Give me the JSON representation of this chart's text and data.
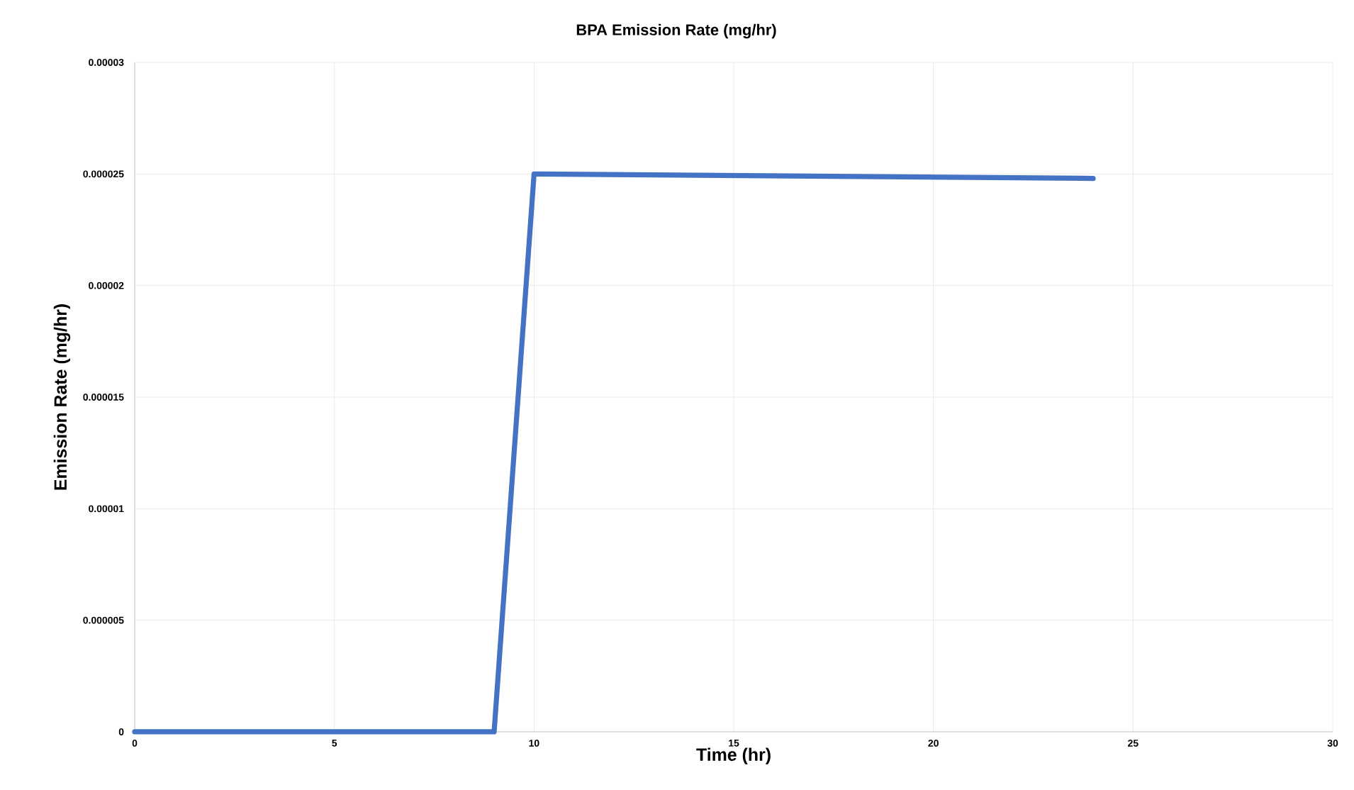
{
  "chart_data": {
    "type": "line",
    "title": "BPA Emission Rate (mg/hr)",
    "xlabel": "Time (hr)",
    "ylabel": "Emission Rate (mg/hr)",
    "x": [
      0,
      9,
      10,
      24
    ],
    "series": [
      {
        "color": "#4472c4",
        "values": [
          0,
          0,
          2.5e-05,
          2.48e-05
        ]
      }
    ],
    "xlim": [
      0,
      30
    ],
    "xticks": [
      0,
      5,
      10,
      15,
      20,
      25,
      30
    ],
    "ylim": [
      0,
      3e-05
    ],
    "yticks": [
      {
        "value": 0,
        "label": "0"
      },
      {
        "value": 5e-06,
        "label": "0.000005"
      },
      {
        "value": 1e-05,
        "label": "0.00001"
      },
      {
        "value": 1.5e-05,
        "label": "0.000015"
      },
      {
        "value": 2e-05,
        "label": "0.00002"
      },
      {
        "value": 2.5e-05,
        "label": "0.000025"
      },
      {
        "value": 3e-05,
        "label": "0.00003"
      }
    ],
    "grid": true,
    "marker": "none",
    "line_style": "solid"
  }
}
